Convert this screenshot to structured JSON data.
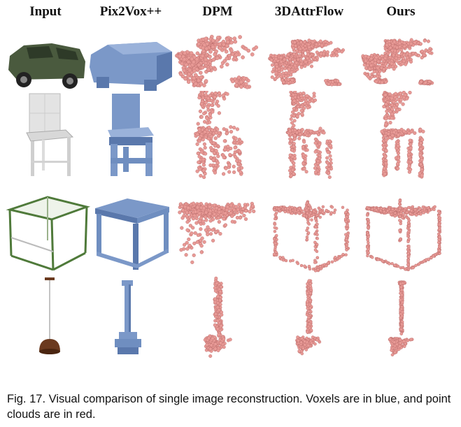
{
  "figure": {
    "columns": [
      {
        "label": "Input"
      },
      {
        "label": "Pix2Vox++"
      },
      {
        "label": "DPM"
      },
      {
        "label": "3DAttrFlow"
      },
      {
        "label": "Ours"
      }
    ],
    "rows": [
      "car",
      "chair",
      "table",
      "lamp"
    ],
    "colors": {
      "voxel": "#7b98c8",
      "voxel_dark": "#5a78ac",
      "point": "#e89a96",
      "point_dark": "#b86a68",
      "car_input": "#4a5a3e",
      "table_frame": "#4f7a3a",
      "lamp_shade": "#6b3a1f"
    }
  },
  "caption": {
    "text": "Fig. 17. Visual comparison of single image reconstruction. Voxels are in blue, and point clouds are in red."
  }
}
